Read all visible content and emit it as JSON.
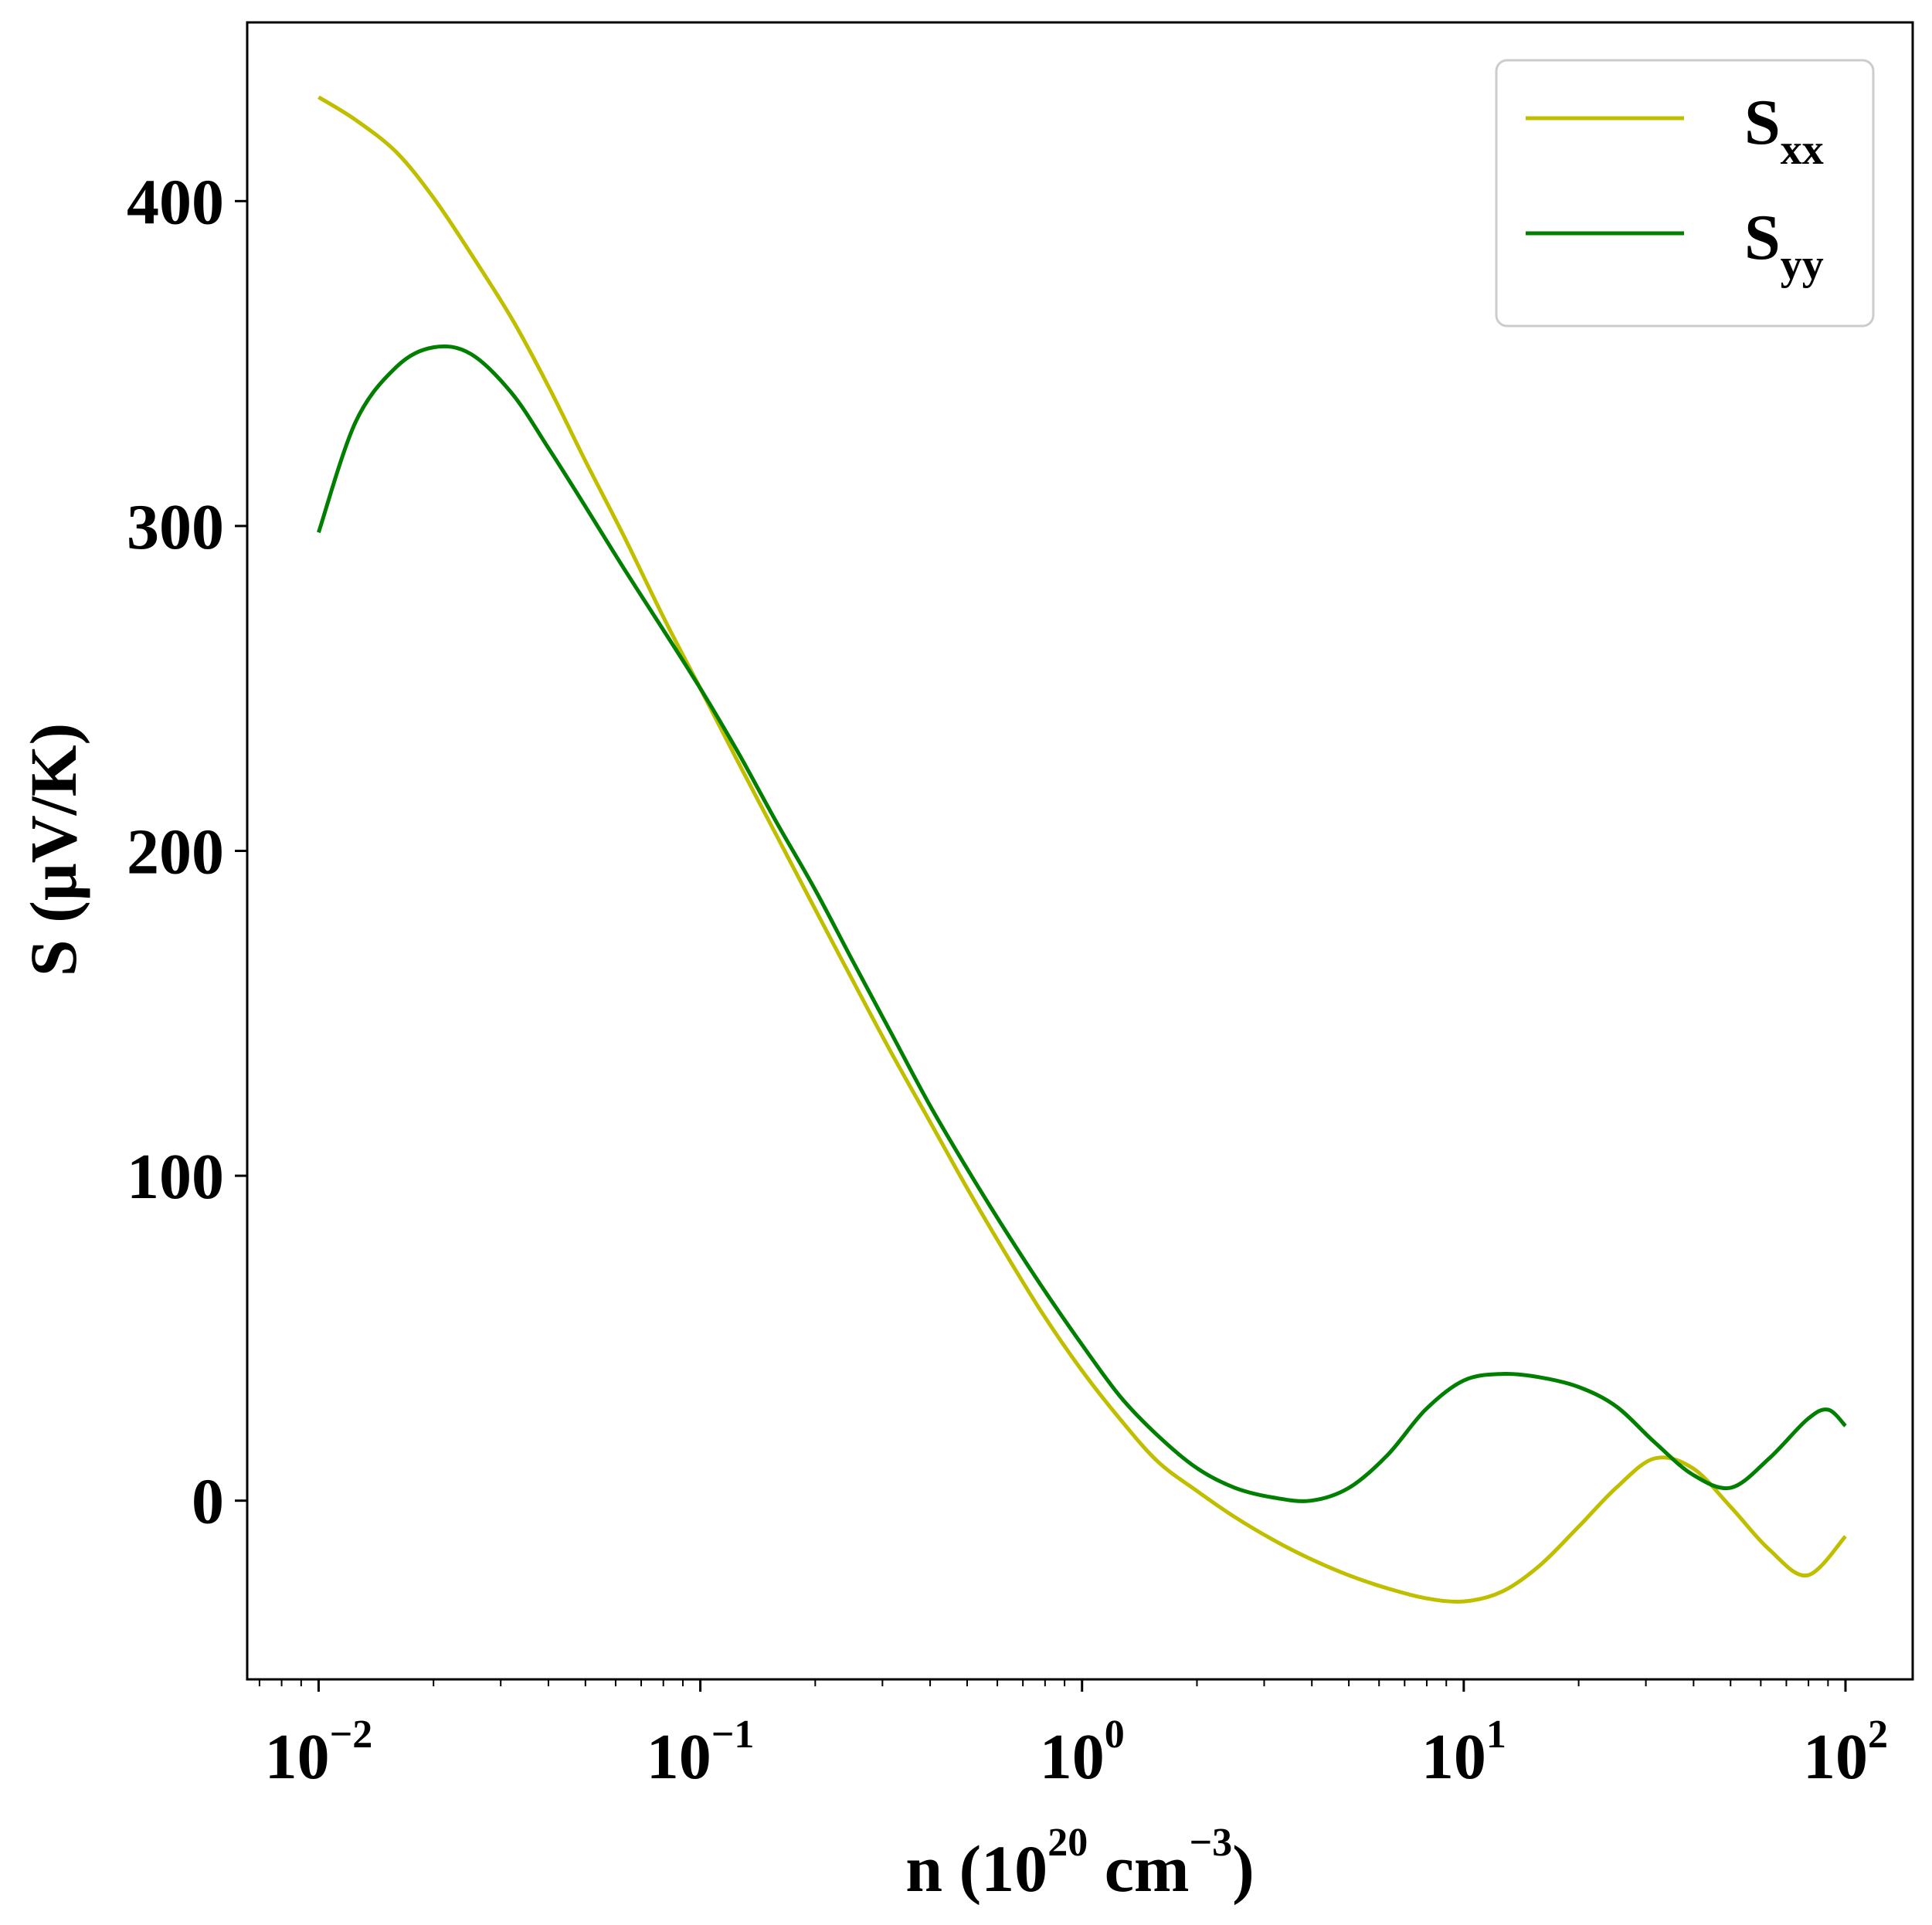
{
  "chart_data": {
    "type": "line",
    "xscale": "log",
    "xlim": [
      0.0065,
      150
    ],
    "ylim": [
      -55,
      455
    ],
    "grid": false,
    "legend_position": "top-right",
    "xlabel": {
      "prefix": "n (10",
      "exp": "20",
      "mid": " cm",
      "exp2": "−3",
      "suffix": ")"
    },
    "ylabel": "S (μV/K)",
    "x_ticks": [
      {
        "value": 0.01,
        "base": "10",
        "exp": "−2"
      },
      {
        "value": 0.1,
        "base": "10",
        "exp": "−1"
      },
      {
        "value": 1,
        "base": "10",
        "exp": "0"
      },
      {
        "value": 10,
        "base": "10",
        "exp": "1"
      },
      {
        "value": 100,
        "base": "10",
        "exp": "2"
      }
    ],
    "y_ticks": [
      {
        "value": 0,
        "label": "0"
      },
      {
        "value": 100,
        "label": "100"
      },
      {
        "value": 200,
        "label": "200"
      },
      {
        "value": 300,
        "label": "300"
      },
      {
        "value": 400,
        "label": "400"
      }
    ],
    "series": [
      {
        "name": "S_xx",
        "label_main": "S",
        "label_sub": "xx",
        "color": "#bfbf00",
        "x": [
          0.01,
          0.0125,
          0.016,
          0.02,
          0.025,
          0.032,
          0.04,
          0.05,
          0.063,
          0.08,
          0.1,
          0.126,
          0.158,
          0.2,
          0.251,
          0.316,
          0.398,
          0.501,
          0.631,
          0.794,
          1.0,
          1.26,
          1.58,
          2.0,
          2.51,
          3.16,
          3.98,
          5.01,
          6.31,
          7.94,
          10.0,
          12.6,
          15.8,
          20.0,
          25.1,
          31.6,
          39.8,
          50.1,
          63.1,
          79.4,
          100.0
        ],
        "y": [
          432,
          425,
          415,
          401,
          384,
          364,
          343,
          320,
          297,
          272,
          250,
          227,
          205,
          182,
          160,
          138,
          117,
          96,
          76,
          57,
          40,
          25,
          12,
          3,
          -5,
          -12,
          -18,
          -23,
          -27,
          -30,
          -31,
          -28,
          -20,
          -8,
          4,
          13,
          10,
          -2,
          -15,
          -23,
          -11
        ]
      },
      {
        "name": "S_yy",
        "label_main": "S",
        "label_sub": "yy",
        "color": "#007f00",
        "x": [
          0.01,
          0.0125,
          0.016,
          0.02,
          0.025,
          0.032,
          0.04,
          0.05,
          0.063,
          0.08,
          0.1,
          0.126,
          0.158,
          0.2,
          0.251,
          0.316,
          0.398,
          0.501,
          0.631,
          0.794,
          1.0,
          1.26,
          1.58,
          2.0,
          2.51,
          3.16,
          3.98,
          5.01,
          6.31,
          7.94,
          10.0,
          12.6,
          15.8,
          20.0,
          25.1,
          31.6,
          39.8,
          50.1,
          63.1,
          79.4,
          90.0,
          100.0
        ],
        "y": [
          298,
          332,
          349,
          355,
          353,
          341,
          324,
          306,
          287,
          268,
          250,
          230,
          209,
          188,
          166,
          144,
          122,
          102,
          83,
          65,
          48,
          32,
          20,
          10,
          4,
          1,
          0,
          4,
          14,
          28,
          37,
          39,
          38,
          35,
          29,
          18,
          8,
          4,
          13,
          25,
          28,
          23
        ]
      }
    ]
  }
}
